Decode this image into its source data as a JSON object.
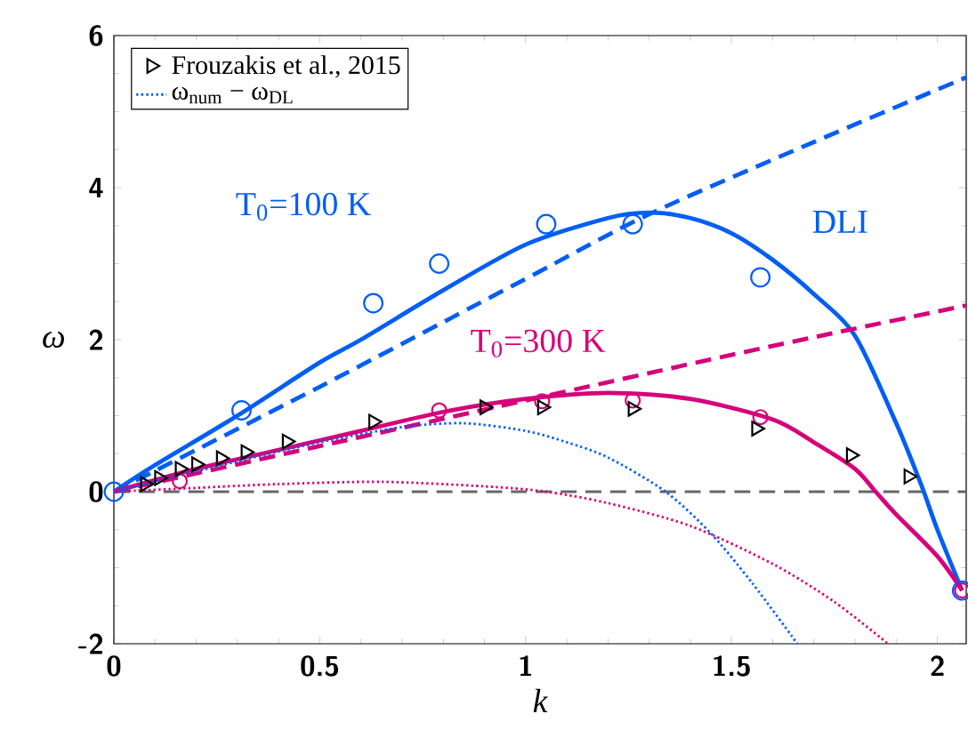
{
  "chart_data": {
    "type": "line",
    "xlabel": "k",
    "ylabel": "ω",
    "xlim": [
      0,
      2.07
    ],
    "ylim": [
      -2,
      6
    ],
    "xticks": [
      0,
      0.5,
      1,
      1.5,
      2
    ],
    "yticks": [
      -2,
      0,
      2,
      4,
      6
    ],
    "grid": false,
    "legend": "top left",
    "annotations": [
      "T$_{0}$=100 K",
      "T$_{0}$=300 K",
      "DLI"
    ],
    "ref_lines": [
      {
        "axis": "y",
        "value": 0,
        "color": "#666666",
        "line_style": "dashed"
      }
    ],
    "series": [
      {
        "color": "#005ef5",
        "line_style": "solid",
        "marker": "none",
        "x": [
          0,
          0.1,
          0.3,
          0.5,
          0.6,
          0.8,
          1.0,
          1.2,
          1.3,
          1.4,
          1.5,
          1.6,
          1.7,
          1.8,
          1.9,
          1.96,
          2.0,
          2.06
        ],
        "values": [
          0,
          0.35,
          1.0,
          1.7,
          2.0,
          2.65,
          3.25,
          3.6,
          3.67,
          3.6,
          3.4,
          3.05,
          2.6,
          2.05,
          0.9,
          0.1,
          -0.5,
          -1.3
        ]
      },
      {
        "color": "#005ef5",
        "line_style": "dashed",
        "marker": "none",
        "x": [
          0,
          0.5,
          1.0,
          1.3,
          1.7,
          2.07
        ],
        "values": [
          0,
          1.38,
          2.8,
          3.65,
          4.6,
          5.45
        ]
      },
      {
        "type": "scatter",
        "color": "#005ef5",
        "marker": "circle",
        "x": [
          0,
          0.31,
          0.63,
          0.79,
          1.05,
          1.26,
          1.57,
          2.06
        ],
        "values": [
          0,
          1.07,
          2.48,
          3.0,
          3.52,
          3.52,
          2.82,
          -1.3
        ]
      },
      {
        "color": "#d6007a",
        "line_style": "solid",
        "marker": "none",
        "x": [
          0,
          0.2,
          0.4,
          0.6,
          0.8,
          1.0,
          1.2,
          1.4,
          1.6,
          1.7,
          1.8,
          1.85,
          1.9,
          2.0,
          2.06
        ],
        "values": [
          0,
          0.3,
          0.55,
          0.8,
          1.05,
          1.22,
          1.3,
          1.22,
          0.95,
          0.65,
          0.3,
          0,
          -0.3,
          -0.85,
          -1.3
        ]
      },
      {
        "color": "#d6007a",
        "line_style": "dashed",
        "marker": "none",
        "x": [
          0,
          0.5,
          1.0,
          1.5,
          1.76,
          2.07
        ],
        "values": [
          0,
          0.6,
          1.2,
          1.8,
          2.1,
          2.45
        ]
      },
      {
        "type": "scatter",
        "color": "#d6007a",
        "marker": "circle",
        "x": [
          0.16,
          0.79,
          1.04,
          1.26,
          1.57,
          2.06
        ],
        "values": [
          0.14,
          1.07,
          1.19,
          1.2,
          0.98,
          -1.3
        ]
      },
      {
        "type": "scatter",
        "color": "#000000",
        "marker": "triangle",
        "name": "Frouzakis et al., 2015",
        "x": [
          0.076,
          0.11,
          0.16,
          0.2,
          0.26,
          0.32,
          0.42,
          0.63,
          0.9,
          1.04,
          1.26,
          1.56,
          1.79,
          1.93
        ],
        "values": [
          0.1,
          0.18,
          0.3,
          0.36,
          0.44,
          0.52,
          0.66,
          0.92,
          1.11,
          1.11,
          1.09,
          0.83,
          0.48,
          0.2
        ]
      },
      {
        "color": "#005ef5",
        "line_style": "dotted",
        "marker": "none",
        "name": "ω$_{num}$ − ω$_{DL}$",
        "x": [
          0,
          0.3,
          0.5,
          0.7,
          0.85,
          1.0,
          1.1,
          1.2,
          1.34,
          1.45,
          1.55,
          1.66
        ],
        "values": [
          0,
          0.4,
          0.65,
          0.85,
          0.9,
          0.8,
          0.65,
          0.45,
          0,
          -0.55,
          -1.2,
          -2.0
        ]
      },
      {
        "color": "#d6007a",
        "line_style": "dotted",
        "marker": "none",
        "x": [
          0,
          0.2,
          0.4,
          0.65,
          0.9,
          1.05,
          1.2,
          1.4,
          1.6,
          1.75,
          1.88
        ],
        "values": [
          0,
          0.05,
          0.1,
          0.13,
          0.07,
          0,
          -0.15,
          -0.45,
          -0.95,
          -1.45,
          -2.0
        ]
      }
    ]
  }
}
